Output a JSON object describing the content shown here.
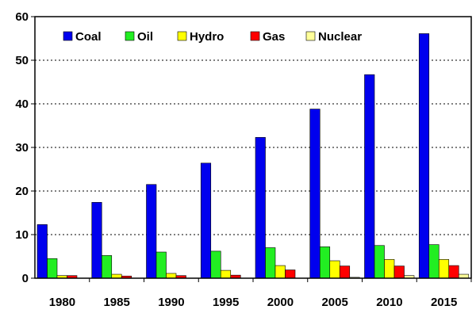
{
  "chart_data": {
    "type": "bar",
    "categories": [
      "1980",
      "1985",
      "1990",
      "1995",
      "2000",
      "2005",
      "2010",
      "2015"
    ],
    "series": [
      {
        "name": "Coal",
        "color": "#0000ee",
        "values": [
          12.3,
          17.4,
          21.5,
          26.4,
          32.3,
          38.8,
          46.7,
          56.1
        ]
      },
      {
        "name": "Oil",
        "color": "#22ee22",
        "values": [
          4.5,
          5.2,
          6.0,
          6.2,
          7.0,
          7.2,
          7.5,
          7.7
        ]
      },
      {
        "name": "Hydro",
        "color": "#ffff00",
        "values": [
          0.6,
          0.9,
          1.1,
          1.8,
          2.9,
          4.0,
          4.3,
          4.3
        ]
      },
      {
        "name": "Gas",
        "color": "#ff0000",
        "values": [
          0.6,
          0.5,
          0.6,
          0.7,
          1.9,
          2.8,
          2.8,
          2.9
        ]
      },
      {
        "name": "Nuclear",
        "color": "#ffff99",
        "values": [
          0.0,
          0.0,
          0.0,
          0.0,
          0.0,
          0.2,
          0.6,
          0.9
        ]
      }
    ],
    "ylim": [
      0,
      60
    ],
    "yticks": [
      "0",
      "10",
      "20",
      "30",
      "40",
      "50",
      "60"
    ],
    "grid": "horizontal dotted",
    "legend_position": "top",
    "title": "",
    "xlabel": "",
    "ylabel": ""
  }
}
